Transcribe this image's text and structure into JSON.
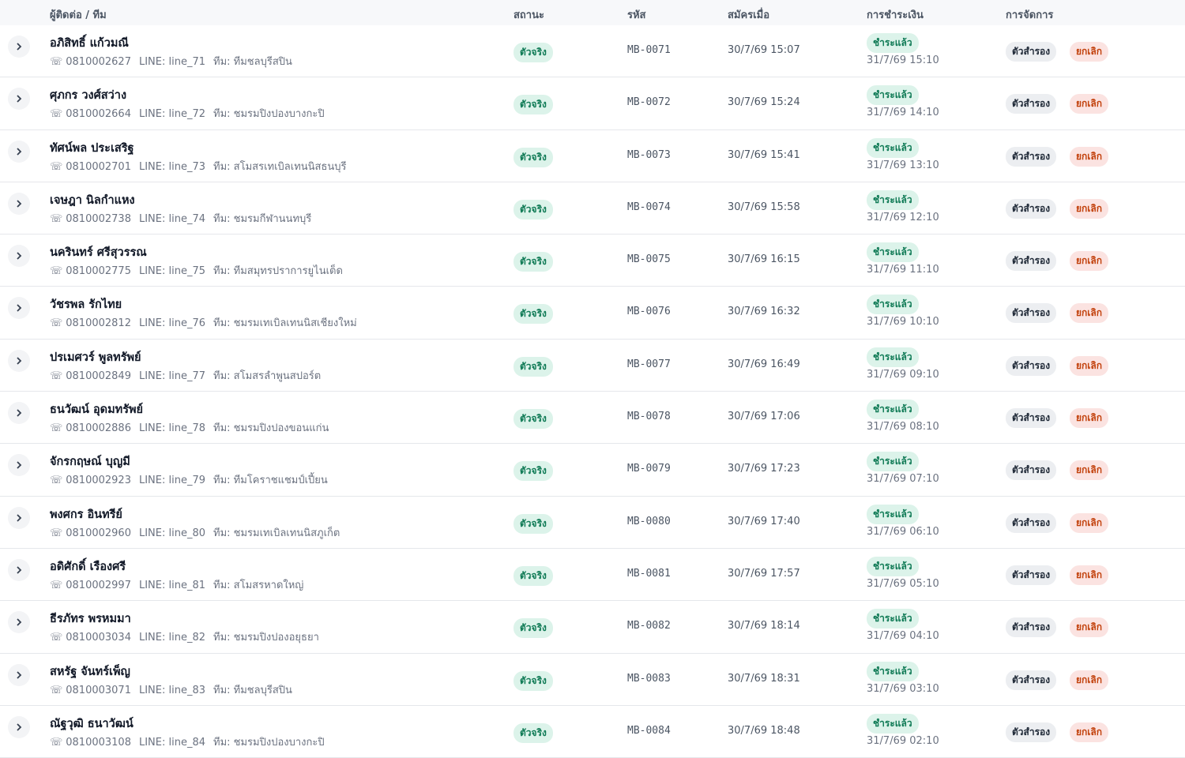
{
  "header": {
    "columns": [
      "ผู้ติดต่อ / ทีม",
      "สถานะ",
      "รหัส",
      "สมัครเมื่อ",
      "การชำระเงิน",
      "การจัดการ"
    ]
  },
  "table": {
    "rows": [
      {
        "name": "อภิสิทธิ์ แก้วมณี",
        "phone": "0810002627",
        "line": "LINE: line_71",
        "team": "ทีม: ทีมชลบุรีสปิน",
        "status": "ตัวจริง",
        "code": "MB-0071",
        "registered": "30/7/69 15:07",
        "payment": "ชำระแล้ว",
        "paid_at": "31/7/69 15:10",
        "action_alt": "ตัวสำรอง",
        "action_cancel": "ยกเลิก"
      },
      {
        "name": "ศุภกร วงศ์สว่าง",
        "phone": "0810002664",
        "line": "LINE: line_72",
        "team": "ทีม: ชมรมปิงปองบางกะปิ",
        "status": "ตัวจริง",
        "code": "MB-0072",
        "registered": "30/7/69 15:24",
        "payment": "ชำระแล้ว",
        "paid_at": "31/7/69 14:10",
        "action_alt": "ตัวสำรอง",
        "action_cancel": "ยกเลิก"
      },
      {
        "name": "ทัศน์พล ประเสริฐ",
        "phone": "0810002701",
        "line": "LINE: line_73",
        "team": "ทีม: สโมสรเทเบิลเทนนิสธนบุรี",
        "status": "ตัวจริง",
        "code": "MB-0073",
        "registered": "30/7/69 15:41",
        "payment": "ชำระแล้ว",
        "paid_at": "31/7/69 13:10",
        "action_alt": "ตัวสำรอง",
        "action_cancel": "ยกเลิก"
      },
      {
        "name": "เจษฎา นิลกำแหง",
        "phone": "0810002738",
        "line": "LINE: line_74",
        "team": "ทีม: ชมรมกีฬานนทบุรี",
        "status": "ตัวจริง",
        "code": "MB-0074",
        "registered": "30/7/69 15:58",
        "payment": "ชำระแล้ว",
        "paid_at": "31/7/69 12:10",
        "action_alt": "ตัวสำรอง",
        "action_cancel": "ยกเลิก"
      },
      {
        "name": "นครินทร์ ศรีสุวรรณ",
        "phone": "0810002775",
        "line": "LINE: line_75",
        "team": "ทีม: ทีมสมุทรปราการยูไนเต็ด",
        "status": "ตัวจริง",
        "code": "MB-0075",
        "registered": "30/7/69 16:15",
        "payment": "ชำระแล้ว",
        "paid_at": "31/7/69 11:10",
        "action_alt": "ตัวสำรอง",
        "action_cancel": "ยกเลิก"
      },
      {
        "name": "วัชรพล รักไทย",
        "phone": "0810002812",
        "line": "LINE: line_76",
        "team": "ทีม: ชมรมเทเบิลเทนนิสเชียงใหม่",
        "status": "ตัวจริง",
        "code": "MB-0076",
        "registered": "30/7/69 16:32",
        "payment": "ชำระแล้ว",
        "paid_at": "31/7/69 10:10",
        "action_alt": "ตัวสำรอง",
        "action_cancel": "ยกเลิก"
      },
      {
        "name": "ปรเมศวร์ พูลทรัพย์",
        "phone": "0810002849",
        "line": "LINE: line_77",
        "team": "ทีม: สโมสรลำพูนสปอร์ต",
        "status": "ตัวจริง",
        "code": "MB-0077",
        "registered": "30/7/69 16:49",
        "payment": "ชำระแล้ว",
        "paid_at": "31/7/69 09:10",
        "action_alt": "ตัวสำรอง",
        "action_cancel": "ยกเลิก"
      },
      {
        "name": "ธนวัฒน์ อุดมทรัพย์",
        "phone": "0810002886",
        "line": "LINE: line_78",
        "team": "ทีม: ชมรมปิงปองขอนแก่น",
        "status": "ตัวจริง",
        "code": "MB-0078",
        "registered": "30/7/69 17:06",
        "payment": "ชำระแล้ว",
        "paid_at": "31/7/69 08:10",
        "action_alt": "ตัวสำรอง",
        "action_cancel": "ยกเลิก"
      },
      {
        "name": "จักรกฤษณ์ บุญมี",
        "phone": "0810002923",
        "line": "LINE: line_79",
        "team": "ทีม: ทีมโคราชแชมป์เปี้ยน",
        "status": "ตัวจริง",
        "code": "MB-0079",
        "registered": "30/7/69 17:23",
        "payment": "ชำระแล้ว",
        "paid_at": "31/7/69 07:10",
        "action_alt": "ตัวสำรอง",
        "action_cancel": "ยกเลิก"
      },
      {
        "name": "พงศกร อินทรีย์",
        "phone": "0810002960",
        "line": "LINE: line_80",
        "team": "ทีม: ชมรมเทเบิลเทนนิสภูเก็ต",
        "status": "ตัวจริง",
        "code": "MB-0080",
        "registered": "30/7/69 17:40",
        "payment": "ชำระแล้ว",
        "paid_at": "31/7/69 06:10",
        "action_alt": "ตัวสำรอง",
        "action_cancel": "ยกเลิก"
      },
      {
        "name": "อดิศักดิ์ เรืองศรี",
        "phone": "0810002997",
        "line": "LINE: line_81",
        "team": "ทีม: สโมสรหาดใหญ่",
        "status": "ตัวจริง",
        "code": "MB-0081",
        "registered": "30/7/69 17:57",
        "payment": "ชำระแล้ว",
        "paid_at": "31/7/69 05:10",
        "action_alt": "ตัวสำรอง",
        "action_cancel": "ยกเลิก"
      },
      {
        "name": "ธีรภัทร พรหมมา",
        "phone": "0810003034",
        "line": "LINE: line_82",
        "team": "ทีม: ชมรมปิงปองอยุธยา",
        "status": "ตัวจริง",
        "code": "MB-0082",
        "registered": "30/7/69 18:14",
        "payment": "ชำระแล้ว",
        "paid_at": "31/7/69 04:10",
        "action_alt": "ตัวสำรอง",
        "action_cancel": "ยกเลิก"
      },
      {
        "name": "สหรัฐ จันทร์เพ็ญ",
        "phone": "0810003071",
        "line": "LINE: line_83",
        "team": "ทีม: ทีมชลบุรีสปิน",
        "status": "ตัวจริง",
        "code": "MB-0083",
        "registered": "30/7/69 18:31",
        "payment": "ชำระแล้ว",
        "paid_at": "31/7/69 03:10",
        "action_alt": "ตัวสำรอง",
        "action_cancel": "ยกเลิก"
      },
      {
        "name": "ณัฐวุฒิ ธนาวัฒน์",
        "phone": "0810003108",
        "line": "LINE: line_84",
        "team": "ทีม: ชมรมปิงปองบางกะปิ",
        "status": "ตัวจริง",
        "code": "MB-0084",
        "registered": "30/7/69 18:48",
        "payment": "ชำระแล้ว",
        "paid_at": "31/7/69 02:10",
        "action_alt": "ตัวสำรอง",
        "action_cancel": "ยกเลิก"
      }
    ]
  }
}
